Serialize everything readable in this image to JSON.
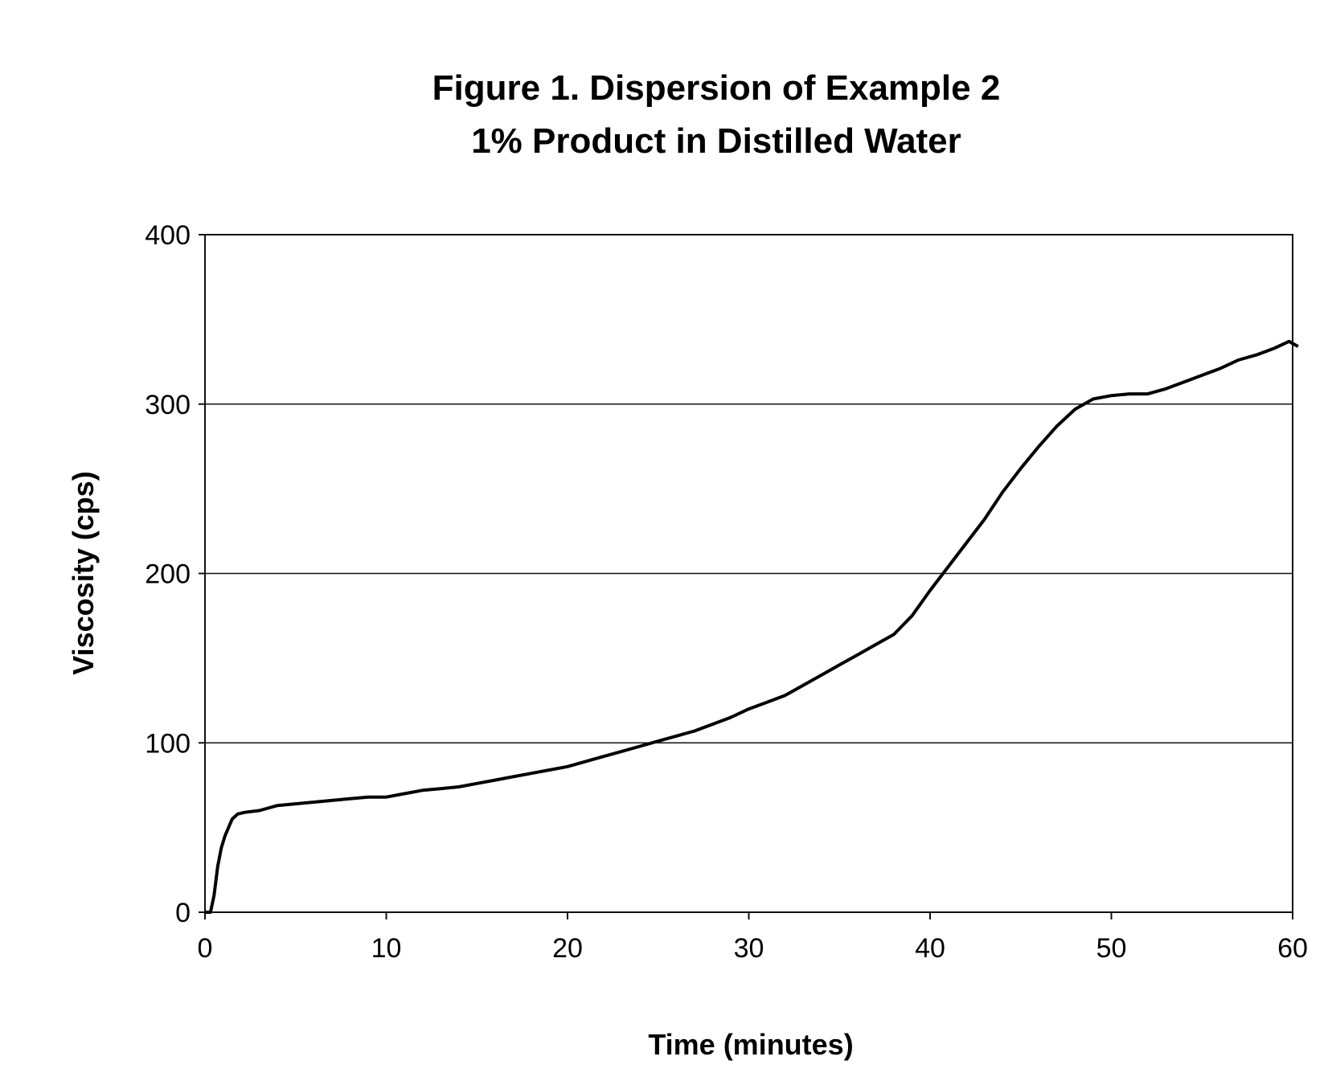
{
  "chart_data": {
    "type": "line",
    "title": "Figure 1.  Dispersion of Example 2",
    "subtitle": "1% Product in Distilled Water",
    "xlabel": "Time (minutes)",
    "ylabel": "Viscosity (cps)",
    "xlim": [
      0,
      60
    ],
    "ylim": [
      0,
      400
    ],
    "x_ticks": [
      0,
      10,
      20,
      30,
      40,
      50,
      60
    ],
    "y_ticks": [
      0,
      100,
      200,
      300,
      400
    ],
    "x_tick_labels": [
      "0",
      "10",
      "20",
      "30",
      "40",
      "50",
      "60"
    ],
    "y_tick_labels": [
      "0",
      "100",
      "200",
      "300",
      "400"
    ],
    "grid": "horizontal",
    "legend": "none",
    "series": [
      {
        "color": "#000000",
        "points": [
          [
            0,
            0
          ],
          [
            0.3,
            0
          ],
          [
            0.5,
            10
          ],
          [
            0.7,
            27
          ],
          [
            0.9,
            38
          ],
          [
            1.1,
            45
          ],
          [
            1.3,
            50
          ],
          [
            1.5,
            55
          ],
          [
            1.8,
            58
          ],
          [
            2.2,
            59
          ],
          [
            3,
            60
          ],
          [
            4,
            63
          ],
          [
            5,
            64
          ],
          [
            6,
            65
          ],
          [
            7,
            66
          ],
          [
            8,
            67
          ],
          [
            9,
            68
          ],
          [
            10,
            68
          ],
          [
            11,
            70
          ],
          [
            12,
            72
          ],
          [
            13,
            73
          ],
          [
            14,
            74
          ],
          [
            15,
            76
          ],
          [
            16,
            78
          ],
          [
            17,
            80
          ],
          [
            18,
            82
          ],
          [
            19,
            84
          ],
          [
            20,
            86
          ],
          [
            21,
            89
          ],
          [
            22,
            92
          ],
          [
            23,
            95
          ],
          [
            24,
            98
          ],
          [
            25,
            101
          ],
          [
            26,
            104
          ],
          [
            27,
            107
          ],
          [
            28,
            111
          ],
          [
            29,
            115
          ],
          [
            30,
            120
          ],
          [
            31,
            124
          ],
          [
            32,
            128
          ],
          [
            33,
            134
          ],
          [
            34,
            140
          ],
          [
            35,
            146
          ],
          [
            36,
            152
          ],
          [
            37,
            158
          ],
          [
            38,
            164
          ],
          [
            39,
            175
          ],
          [
            40,
            190
          ],
          [
            41,
            204
          ],
          [
            42,
            218
          ],
          [
            43,
            232
          ],
          [
            44,
            248
          ],
          [
            45,
            262
          ],
          [
            46,
            275
          ],
          [
            47,
            287
          ],
          [
            48,
            297
          ],
          [
            49,
            303
          ],
          [
            50,
            305
          ],
          [
            51,
            306
          ],
          [
            52,
            306
          ],
          [
            53,
            309
          ],
          [
            54,
            313
          ],
          [
            55,
            317
          ],
          [
            56,
            321
          ],
          [
            57,
            326
          ],
          [
            58,
            329
          ],
          [
            59,
            333
          ],
          [
            59.8,
            337
          ],
          [
            60.3,
            334
          ]
        ]
      }
    ]
  }
}
